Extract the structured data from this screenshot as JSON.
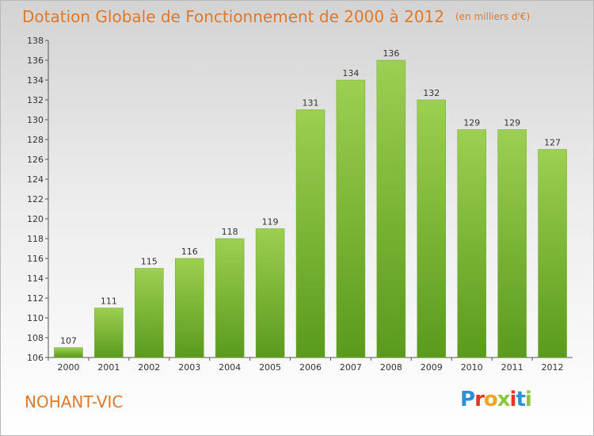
{
  "title": "Dotation Globale de Fonctionnement de 2000 à 2012",
  "unit_note": "(en milliers d'€)",
  "commune": "NOHANT-VIC",
  "logo": {
    "letters": [
      "P",
      "r",
      "o",
      "x",
      "i",
      "t",
      "i"
    ],
    "colors": [
      "#2d8fd6",
      "#e8332a",
      "#f2a322",
      "#8cc63f",
      "#e8332a",
      "#2d8fd6",
      "#8cc63f"
    ]
  },
  "colors": {
    "bar_top": "#9ccf52",
    "bar_bottom": "#5a9a1c",
    "title": "#e0782a"
  },
  "chart_data": {
    "type": "bar",
    "title": "Dotation Globale de Fonctionnement de 2000 à 2012",
    "subtitle": "(en milliers d'€)",
    "categories": [
      "2000",
      "2001",
      "2002",
      "2003",
      "2004",
      "2005",
      "2006",
      "2007",
      "2008",
      "2009",
      "2010",
      "2011",
      "2012"
    ],
    "values": [
      107,
      111,
      115,
      116,
      118,
      119,
      131,
      134,
      136,
      132,
      129,
      129,
      127
    ],
    "xlabel": "",
    "ylabel": "",
    "ylim": [
      106,
      138
    ],
    "yticks": [
      106,
      108,
      110,
      112,
      114,
      116,
      118,
      120,
      122,
      124,
      126,
      128,
      130,
      132,
      134,
      136,
      138
    ],
    "grid": false
  }
}
